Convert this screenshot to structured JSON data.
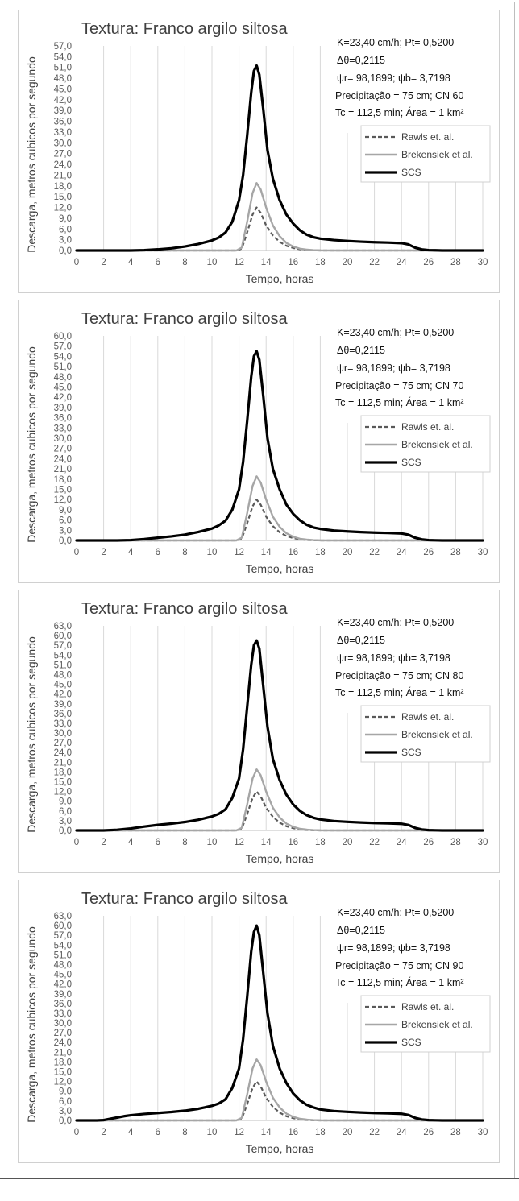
{
  "chart_data": [
    {
      "type": "line",
      "title": "Textura: Franco argilo siltosa",
      "xlabel": "Tempo, horas",
      "ylabel": "Descarga, metros cubicos por segundo",
      "xlim": [
        0,
        30
      ],
      "xticks": [
        "0",
        "2",
        "4",
        "6",
        "8",
        "10",
        "12",
        "14",
        "16",
        "18",
        "20",
        "22",
        "24",
        "26",
        "28",
        "30"
      ],
      "ylim": [
        0,
        57
      ],
      "yticks": [
        "0,0",
        "3,0",
        "6,0",
        "9,0",
        "12,0",
        "15,0",
        "18,0",
        "21,0",
        "24,0",
        "27,0",
        "30,0",
        "33,0",
        "36,0",
        "39,0",
        "42,0",
        "45,0",
        "48,0",
        "51,0",
        "54,0",
        "57,0"
      ],
      "grid": "vertical",
      "legend": "right",
      "annotations": [
        "K=23,40 cm/h; Pt= 0,5200",
        "Δθ=0,2115",
        "ψr= 98,1899;  ψb= 3,7198",
        "Precipitação = 75 cm; CN 60",
        "Tc = 112,5 min; Área = 1 km²"
      ],
      "series": [
        {
          "name": "Rawls et. al.",
          "style": "dashed",
          "color": "#595959",
          "x": [
            0,
            11.8,
            12.2,
            12.6,
            13.0,
            13.3,
            13.6,
            14.0,
            14.5,
            15.0,
            15.5,
            16.0,
            16.5,
            17.0,
            17.5,
            18.0,
            19.0,
            20.0,
            30.0
          ],
          "y": [
            0,
            0,
            0.5,
            5,
            10,
            12,
            10.5,
            7,
            4.2,
            2.4,
            1.3,
            0.7,
            0.35,
            0.15,
            0.05,
            0,
            0,
            0,
            0
          ]
        },
        {
          "name": "Brekensiek et al.",
          "style": "solid",
          "color": "#a6a6a6",
          "x": [
            0,
            11.8,
            12.2,
            12.6,
            13.0,
            13.3,
            13.6,
            14.0,
            14.5,
            15.0,
            15.5,
            16.0,
            16.5,
            17.0,
            17.5,
            18.0,
            19.0,
            20.0,
            30.0
          ],
          "y": [
            0,
            0,
            0.8,
            8,
            16,
            18.8,
            17,
            12,
            7,
            4,
            2.1,
            1.1,
            0.5,
            0.25,
            0.1,
            0.03,
            0,
            0,
            0
          ]
        },
        {
          "name": "SCS",
          "style": "solid",
          "color": "#000000",
          "x": [
            0,
            4,
            5,
            6,
            7,
            8,
            9,
            10,
            10.5,
            11,
            11.5,
            12,
            12.3,
            12.6,
            12.9,
            13.1,
            13.3,
            13.5,
            13.8,
            14.1,
            14.5,
            15,
            15.5,
            16,
            16.5,
            17,
            17.5,
            18,
            19,
            20,
            21,
            22,
            23,
            24,
            24.5,
            25,
            25.5,
            26,
            26.5,
            27,
            28,
            29,
            30
          ],
          "y": [
            0,
            0,
            0.1,
            0.3,
            0.6,
            1.1,
            1.8,
            2.8,
            3.6,
            5.0,
            8.0,
            14,
            21,
            32,
            44,
            50,
            51.5,
            49,
            39,
            28,
            20,
            14,
            10,
            7.5,
            5.6,
            4.4,
            3.7,
            3.3,
            2.9,
            2.65,
            2.45,
            2.3,
            2.2,
            2.05,
            1.7,
            0.8,
            0.3,
            0.1,
            0.05,
            0,
            0,
            0,
            0
          ]
        }
      ]
    },
    {
      "type": "line",
      "title": "Textura: Franco argilo siltosa",
      "xlabel": "Tempo, horas",
      "ylabel": "Descarga, metros cubicos por segundo",
      "xlim": [
        0,
        30
      ],
      "xticks": [
        "0",
        "2",
        "4",
        "6",
        "8",
        "10",
        "12",
        "14",
        "16",
        "18",
        "20",
        "22",
        "24",
        "26",
        "28",
        "30"
      ],
      "ylim": [
        0,
        60
      ],
      "yticks": [
        "0,0",
        "3,0",
        "6,0",
        "9,0",
        "12,0",
        "15,0",
        "18,0",
        "21,0",
        "24,0",
        "27,0",
        "30,0",
        "33,0",
        "36,0",
        "39,0",
        "42,0",
        "45,0",
        "48,0",
        "51,0",
        "54,0",
        "57,0",
        "60,0"
      ],
      "grid": "vertical",
      "legend": "right",
      "annotations": [
        "K=23,40 cm/h; Pt= 0,5200",
        "Δθ=0,2115",
        "ψr= 98,1899;  ψb= 3,7198",
        "Precipitação = 75 cm; CN 70",
        "Tc = 112,5 min; Área = 1 km²"
      ],
      "series": [
        {
          "name": "Rawls et. al.",
          "style": "dashed",
          "color": "#595959",
          "x": [
            0,
            11.8,
            12.2,
            12.6,
            13.0,
            13.3,
            13.6,
            14.0,
            14.5,
            15.0,
            15.5,
            16.0,
            16.5,
            17.0,
            17.5,
            18.0,
            19.0,
            20.0,
            30.0
          ],
          "y": [
            0,
            0,
            0.5,
            5,
            10,
            12,
            10.5,
            7,
            4.2,
            2.4,
            1.3,
            0.7,
            0.35,
            0.15,
            0.05,
            0,
            0,
            0,
            0
          ]
        },
        {
          "name": "Brekensiek et al.",
          "style": "solid",
          "color": "#a6a6a6",
          "x": [
            0,
            11.8,
            12.2,
            12.6,
            13.0,
            13.3,
            13.6,
            14.0,
            14.5,
            15.0,
            15.5,
            16.0,
            16.5,
            17.0,
            17.5,
            18.0,
            19.0,
            20.0,
            30.0
          ],
          "y": [
            0,
            0,
            0.8,
            8,
            16,
            18.8,
            17,
            12,
            7,
            4,
            2.1,
            1.1,
            0.5,
            0.25,
            0.1,
            0.03,
            0,
            0,
            0
          ]
        },
        {
          "name": "SCS",
          "style": "solid",
          "color": "#000000",
          "x": [
            0,
            3,
            4,
            5,
            6,
            7,
            8,
            9,
            10,
            10.5,
            11,
            11.5,
            12,
            12.3,
            12.6,
            12.9,
            13.1,
            13.3,
            13.5,
            13.8,
            14.1,
            14.5,
            15,
            15.5,
            16,
            16.5,
            17,
            17.5,
            18,
            19,
            20,
            21,
            22,
            23,
            24,
            24.5,
            25,
            25.5,
            26,
            26.5,
            27,
            28,
            29,
            30
          ],
          "y": [
            0,
            0,
            0.1,
            0.4,
            0.8,
            1.2,
            1.7,
            2.5,
            3.5,
            4.4,
            5.8,
            9,
            15,
            23,
            35,
            48,
            54,
            55.5,
            53,
            42,
            30,
            21,
            15,
            10.5,
            7.8,
            5.9,
            4.6,
            3.8,
            3.4,
            2.9,
            2.65,
            2.45,
            2.3,
            2.2,
            2.05,
            1.7,
            0.8,
            0.3,
            0.1,
            0.05,
            0,
            0,
            0,
            0
          ]
        }
      ]
    },
    {
      "type": "line",
      "title": "Textura: Franco argilo siltosa",
      "xlabel": "Tempo, horas",
      "ylabel": "Descarga, metros cubicos por segundo",
      "xlim": [
        0,
        30
      ],
      "xticks": [
        "0",
        "2",
        "4",
        "6",
        "8",
        "10",
        "12",
        "14",
        "16",
        "18",
        "20",
        "22",
        "24",
        "26",
        "28",
        "30"
      ],
      "ylim": [
        0,
        63
      ],
      "yticks": [
        "0,0",
        "3,0",
        "6,0",
        "9,0",
        "12,0",
        "15,0",
        "18,0",
        "21,0",
        "24,0",
        "27,0",
        "30,0",
        "33,0",
        "36,0",
        "39,0",
        "42,0",
        "45,0",
        "48,0",
        "51,0",
        "54,0",
        "57,0",
        "60,0",
        "63,0"
      ],
      "grid": "vertical",
      "legend": "right",
      "annotations": [
        "K=23,40 cm/h; Pt= 0,5200",
        "Δθ=0,2115",
        "ψr= 98,1899;  ψb= 3,7198",
        "Precipitação = 75 cm; CN 80",
        "Tc = 112,5 min; Área = 1 km²"
      ],
      "series": [
        {
          "name": "Rawls et. al.",
          "style": "dashed",
          "color": "#595959",
          "x": [
            0,
            11.8,
            12.2,
            12.6,
            13.0,
            13.3,
            13.6,
            14.0,
            14.5,
            15.0,
            15.5,
            16.0,
            16.5,
            17.0,
            17.5,
            18.0,
            19.0,
            20.0,
            30.0
          ],
          "y": [
            0,
            0,
            0.5,
            5,
            10,
            12,
            10.5,
            7,
            4.2,
            2.4,
            1.3,
            0.7,
            0.35,
            0.15,
            0.05,
            0,
            0,
            0,
            0
          ]
        },
        {
          "name": "Brekensiek et al.",
          "style": "solid",
          "color": "#a6a6a6",
          "x": [
            0,
            11.8,
            12.2,
            12.6,
            13.0,
            13.3,
            13.6,
            14.0,
            14.5,
            15.0,
            15.5,
            16.0,
            16.5,
            17.0,
            17.5,
            18.0,
            19.0,
            20.0,
            30.0
          ],
          "y": [
            0,
            0,
            0.8,
            8,
            16,
            18.8,
            17,
            12,
            7,
            4,
            2.1,
            1.1,
            0.5,
            0.25,
            0.1,
            0.03,
            0,
            0,
            0
          ]
        },
        {
          "name": "SCS",
          "style": "solid",
          "color": "#000000",
          "x": [
            0,
            2,
            3,
            4,
            5,
            6,
            7,
            8,
            9,
            10,
            10.5,
            11,
            11.5,
            12,
            12.3,
            12.6,
            12.9,
            13.1,
            13.3,
            13.5,
            13.8,
            14.1,
            14.5,
            15,
            15.5,
            16,
            16.5,
            17,
            17.5,
            18,
            19,
            20,
            21,
            22,
            23,
            24,
            24.5,
            25,
            25.5,
            26,
            26.5,
            27,
            28,
            29,
            30
          ],
          "y": [
            0,
            0,
            0.2,
            0.6,
            1.2,
            1.7,
            2.1,
            2.6,
            3.3,
            4.3,
            5.1,
            6.5,
            10,
            16,
            25,
            38,
            51,
            57,
            58.5,
            56,
            44,
            32,
            22,
            15.5,
            11,
            8,
            6,
            4.7,
            3.9,
            3.4,
            2.9,
            2.65,
            2.45,
            2.3,
            2.2,
            2.05,
            1.7,
            0.8,
            0.3,
            0.1,
            0.05,
            0,
            0,
            0,
            0
          ]
        }
      ]
    },
    {
      "type": "line",
      "title": "Textura: Franco argilo siltosa",
      "xlabel": "Tempo, horas",
      "ylabel": "Descarga, metros cubicos por segundo",
      "xlim": [
        0,
        30
      ],
      "xticks": [
        "0",
        "2",
        "4",
        "6",
        "8",
        "10",
        "12",
        "14",
        "16",
        "18",
        "20",
        "22",
        "24",
        "26",
        "28",
        "30"
      ],
      "ylim": [
        0,
        63
      ],
      "yticks": [
        "0,0",
        "3,0",
        "6,0",
        "9,0",
        "12,0",
        "15,0",
        "18,0",
        "21,0",
        "24,0",
        "27,0",
        "30,0",
        "33,0",
        "36,0",
        "39,0",
        "42,0",
        "45,0",
        "48,0",
        "51,0",
        "54,0",
        "57,0",
        "60,0",
        "63,0"
      ],
      "grid": "vertical",
      "legend": "right",
      "annotations": [
        "K=23,40 cm/h; Pt= 0,5200",
        "Δθ=0,2115",
        "ψr= 98,1899;  ψb= 3,7198",
        "Precipitação = 75 cm; CN 90",
        "Tc = 112,5 min; Área = 1 km²"
      ],
      "series": [
        {
          "name": "Rawls et. al.",
          "style": "dashed",
          "color": "#595959",
          "x": [
            0,
            11.8,
            12.2,
            12.6,
            13.0,
            13.3,
            13.6,
            14.0,
            14.5,
            15.0,
            15.5,
            16.0,
            16.5,
            17.0,
            17.5,
            18.0,
            19.0,
            20.0,
            30.0
          ],
          "y": [
            0,
            0,
            0.5,
            5,
            10,
            12,
            10.5,
            7,
            4.2,
            2.4,
            1.3,
            0.7,
            0.35,
            0.15,
            0.05,
            0,
            0,
            0,
            0
          ]
        },
        {
          "name": "Brekensiek et al.",
          "style": "solid",
          "color": "#a6a6a6",
          "x": [
            0,
            11.8,
            12.2,
            12.6,
            13.0,
            13.3,
            13.6,
            14.0,
            14.5,
            15.0,
            15.5,
            16.0,
            16.5,
            17.0,
            17.5,
            18.0,
            19.0,
            20.0,
            30.0
          ],
          "y": [
            0,
            0,
            0.8,
            8,
            16,
            18.8,
            17,
            12,
            7,
            4,
            2.1,
            1.1,
            0.5,
            0.25,
            0.1,
            0.03,
            0,
            0,
            0
          ]
        },
        {
          "name": "SCS",
          "style": "solid",
          "color": "#000000",
          "x": [
            0,
            1.5,
            2,
            2.5,
            3,
            3.5,
            4,
            5,
            6,
            7,
            8,
            9,
            10,
            10.5,
            11,
            11.5,
            12,
            12.3,
            12.6,
            12.9,
            13.1,
            13.3,
            13.5,
            13.8,
            14.1,
            14.5,
            15,
            15.5,
            16,
            16.5,
            17,
            17.5,
            18,
            19,
            20,
            21,
            22,
            23,
            24,
            24.5,
            25,
            25.5,
            26,
            26.5,
            27,
            28,
            29,
            30
          ],
          "y": [
            0,
            0,
            0.1,
            0.5,
            0.9,
            1.3,
            1.6,
            2.0,
            2.3,
            2.6,
            3.0,
            3.6,
            4.5,
            5.2,
            6.5,
            10,
            16,
            25,
            38,
            52,
            58,
            60,
            57,
            45,
            33,
            23,
            16,
            11.5,
            8.3,
            6.2,
            4.8,
            4.0,
            3.4,
            2.9,
            2.65,
            2.45,
            2.3,
            2.2,
            2.05,
            1.7,
            0.8,
            0.3,
            0.1,
            0.05,
            0,
            0,
            0,
            0
          ]
        }
      ]
    }
  ]
}
